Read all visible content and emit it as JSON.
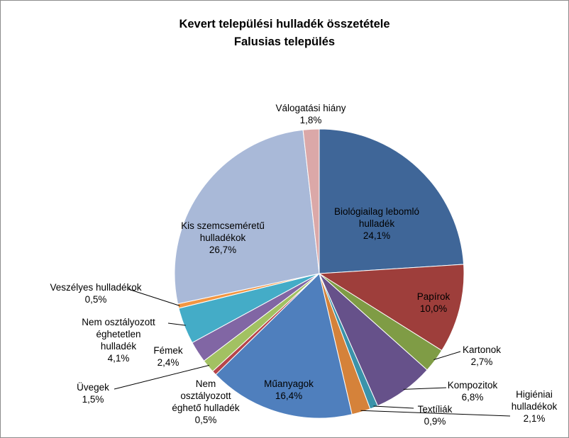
{
  "chart_data": {
    "type": "pie",
    "title": [
      "Kevert települési hulladék összetétele",
      "Falusias település"
    ],
    "slices": [
      {
        "label": [
          "Biológiailag lebomló",
          "hulladék"
        ],
        "value": 24.1,
        "value_label": "24,1%",
        "color": "#3f6698"
      },
      {
        "label": [
          "Papírok"
        ],
        "value": 10.0,
        "value_label": "10,0%",
        "color": "#9e3e3b"
      },
      {
        "label": [
          "Kartonok"
        ],
        "value": 2.7,
        "value_label": "2,7%",
        "color": "#7f9c45"
      },
      {
        "label": [
          "Kompozitok"
        ],
        "value": 6.8,
        "value_label": "6,8%",
        "color": "#66518a"
      },
      {
        "label": [
          "Textíliák"
        ],
        "value": 0.9,
        "value_label": "0,9%",
        "color": "#3b93aa"
      },
      {
        "label": [
          "Higiéniai",
          "hulladékok"
        ],
        "value": 2.1,
        "value_label": "2,1%",
        "color": "#d5823a"
      },
      {
        "label": [
          "Műanyagok"
        ],
        "value": 16.4,
        "value_label": "16,4%",
        "color": "#4f7fbd"
      },
      {
        "label": [
          "Nem",
          "osztályozott",
          "éghető hulladék"
        ],
        "value": 0.5,
        "value_label": "0,5%",
        "color": "#b6454a"
      },
      {
        "label": [
          "Üvegek"
        ],
        "value": 1.5,
        "value_label": "1,5%",
        "color": "#a2c162"
      },
      {
        "label": [
          "Fémek"
        ],
        "value": 2.4,
        "value_label": "2,4%",
        "color": "#8166a4"
      },
      {
        "label": [
          "Nem osztályozott",
          "éghetetlen",
          "hulladék"
        ],
        "value": 4.1,
        "value_label": "4,1%",
        "color": "#44acc7"
      },
      {
        "label": [
          "Veszélyes hulladékok"
        ],
        "value": 0.5,
        "value_label": "0,5%",
        "color": "#f29642"
      },
      {
        "label": [
          "Kis szemcseméretű",
          "hulladékok"
        ],
        "value": 26.7,
        "value_label": "26,7%",
        "color": "#a9b9d8"
      },
      {
        "label": [
          "Válogatási hiány"
        ],
        "value": 1.8,
        "value_label": "1,8%",
        "color": "#dba8a8"
      }
    ]
  }
}
